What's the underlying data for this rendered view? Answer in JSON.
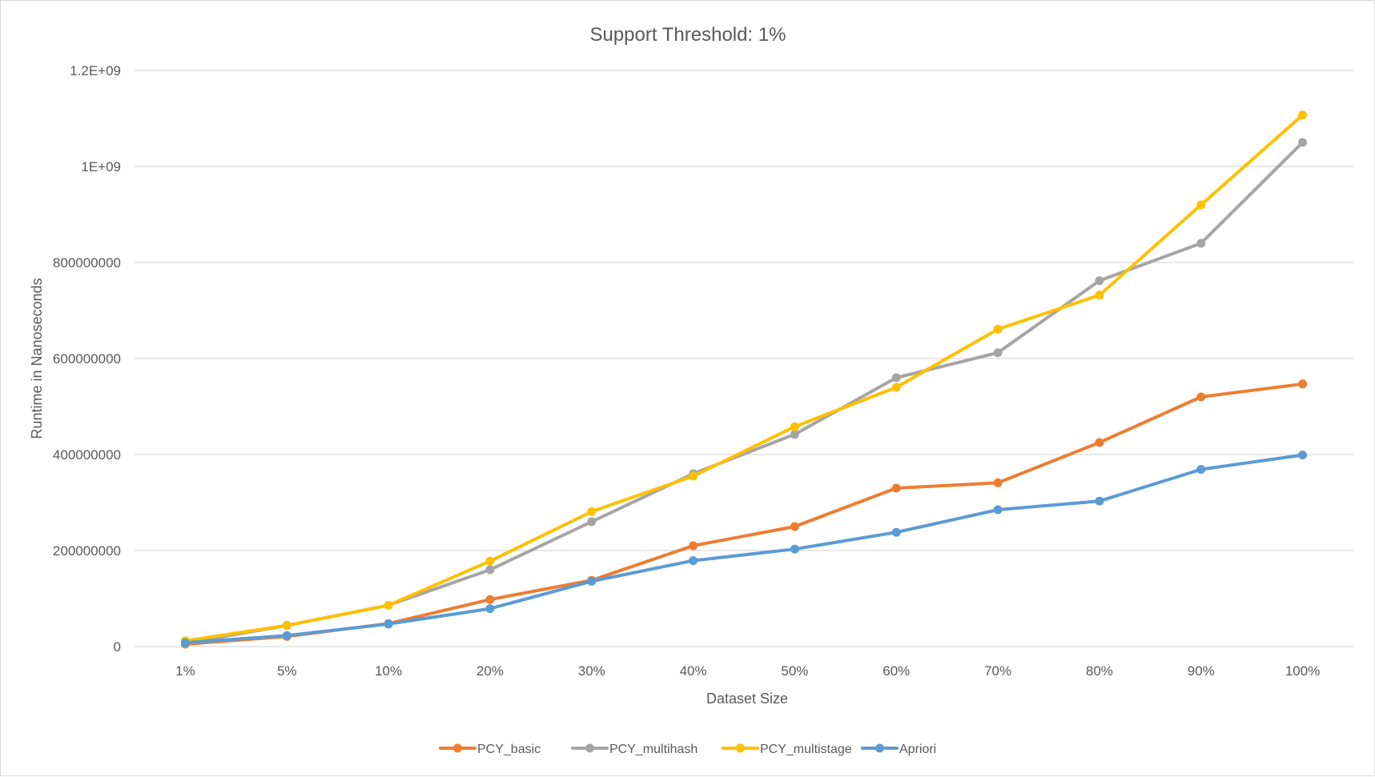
{
  "chart_data": {
    "type": "line",
    "title": "Support Threshold: 1%",
    "xlabel": "Dataset Size",
    "ylabel": "Runtime in Nanoseconds",
    "categories": [
      "1%",
      "5%",
      "10%",
      "20%",
      "30%",
      "40%",
      "50%",
      "60%",
      "70%",
      "80%",
      "90%",
      "100%"
    ],
    "ylim": [
      0,
      1200000000
    ],
    "yticks": [
      {
        "value": 0,
        "label": "0"
      },
      {
        "value": 200000000,
        "label": "200000000"
      },
      {
        "value": 400000000,
        "label": "400000000"
      },
      {
        "value": 600000000,
        "label": "600000000"
      },
      {
        "value": 800000000,
        "label": "800000000"
      },
      {
        "value": 1000000000,
        "label": "1E+09"
      },
      {
        "value": 1200000000,
        "label": "1.2E+09"
      }
    ],
    "grid": true,
    "legend_position": "bottom",
    "series": [
      {
        "name": "PCY_basic",
        "color": "#ED7D31",
        "values": [
          5000000,
          21000000,
          48000000,
          98000000,
          138000000,
          210000000,
          250000000,
          330000000,
          341000000,
          425000000,
          520000000,
          547000000
        ]
      },
      {
        "name": "PCY_multihash",
        "color": "#A5A5A5",
        "values": [
          7000000,
          44000000,
          86000000,
          160000000,
          260000000,
          360000000,
          442000000,
          560000000,
          612000000,
          762000000,
          840000000,
          1050000000
        ]
      },
      {
        "name": "PCY_multistage",
        "color": "#FFC000",
        "values": [
          12000000,
          44000000,
          86000000,
          178000000,
          281000000,
          355000000,
          458000000,
          540000000,
          661000000,
          732000000,
          920000000,
          1107000000
        ]
      },
      {
        "name": "Apriori",
        "color": "#5B9BD5",
        "values": [
          8000000,
          23000000,
          47000000,
          79000000,
          136000000,
          179000000,
          203000000,
          238000000,
          285000000,
          303000000,
          369000000,
          399000000
        ]
      }
    ]
  }
}
